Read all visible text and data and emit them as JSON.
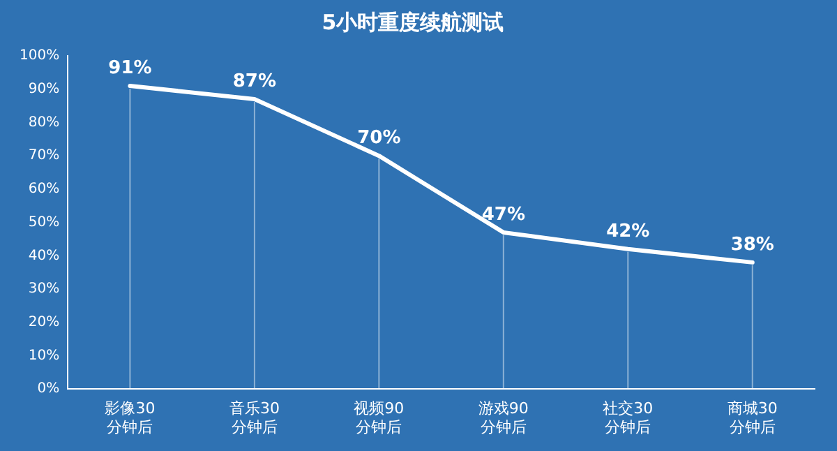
{
  "chart_data": {
    "type": "line",
    "title": "5小时重度续航测试",
    "categories": [
      "影像30\n分钟后",
      "音乐30\n分钟后",
      "视频90\n分钟后",
      "游戏90\n分钟后",
      "社交30\n分钟后",
      "商城30\n分钟后"
    ],
    "series": [
      {
        "color": "#ffffff",
        "values": [
          91,
          87,
          70,
          47,
          42,
          38
        ]
      }
    ],
    "value_labels": [
      "91%",
      "87%",
      "70%",
      "47%",
      "42%",
      "38%"
    ],
    "ylim": [
      0,
      100
    ],
    "yticks": [
      {
        "value": 0,
        "label": "0%"
      },
      {
        "value": 10,
        "label": "10%"
      },
      {
        "value": 20,
        "label": "20%"
      },
      {
        "value": 30,
        "label": "30%"
      },
      {
        "value": 40,
        "label": "40%"
      },
      {
        "value": 50,
        "label": "50%"
      },
      {
        "value": 60,
        "label": "60%"
      },
      {
        "value": 70,
        "label": "70%"
      },
      {
        "value": 80,
        "label": "80%"
      },
      {
        "value": 90,
        "label": "90%"
      },
      {
        "value": 100,
        "label": "100%"
      }
    ],
    "grid": "x",
    "legend": false,
    "marker": "none",
    "line_style": "solid"
  }
}
